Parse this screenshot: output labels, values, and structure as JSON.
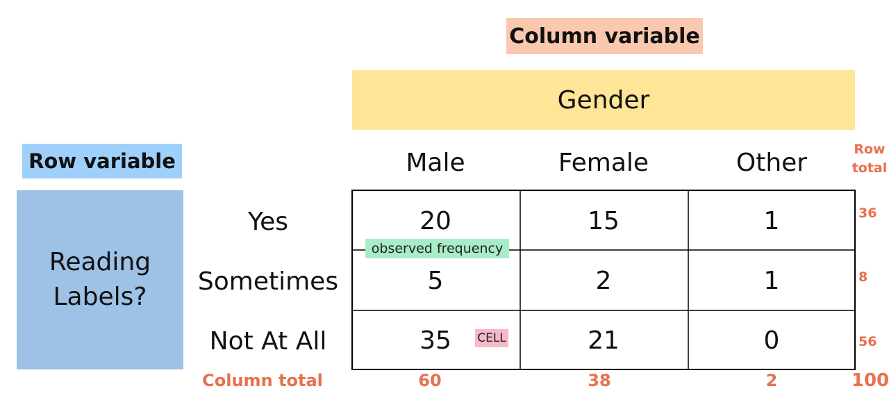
{
  "column_variable_label": "Column variable",
  "column_variable_name": "Gender",
  "row_variable_label": "Row variable",
  "row_variable_name_line1": "Reading",
  "row_variable_name_line2": "Labels?",
  "columns": [
    "Male",
    "Female",
    "Other"
  ],
  "rows": [
    "Yes",
    "Sometimes",
    "Not At All"
  ],
  "cells": [
    [
      "20",
      "15",
      "1"
    ],
    [
      "5",
      "2",
      "1"
    ],
    [
      "35",
      "21",
      "0"
    ]
  ],
  "row_total_title_line1": "Row",
  "row_total_title_line2": "total",
  "row_totals": [
    "36",
    "8",
    "56"
  ],
  "column_total_title": "Column total",
  "column_totals": [
    "60",
    "38",
    "2"
  ],
  "grand_total": "100",
  "annotations": {
    "observed_frequency": "observed frequency",
    "cell": "CELL"
  },
  "colors": {
    "column_variable_bg": "#fac8ae",
    "gender_band_bg": "#fee598",
    "row_variable_bg": "#9fd0fb",
    "reading_box_bg": "#9dc2e5",
    "totals_text": "#e8714c",
    "observed_tag_bg": "#a8ecc8",
    "cell_tag_bg": "#f7b8c8"
  }
}
